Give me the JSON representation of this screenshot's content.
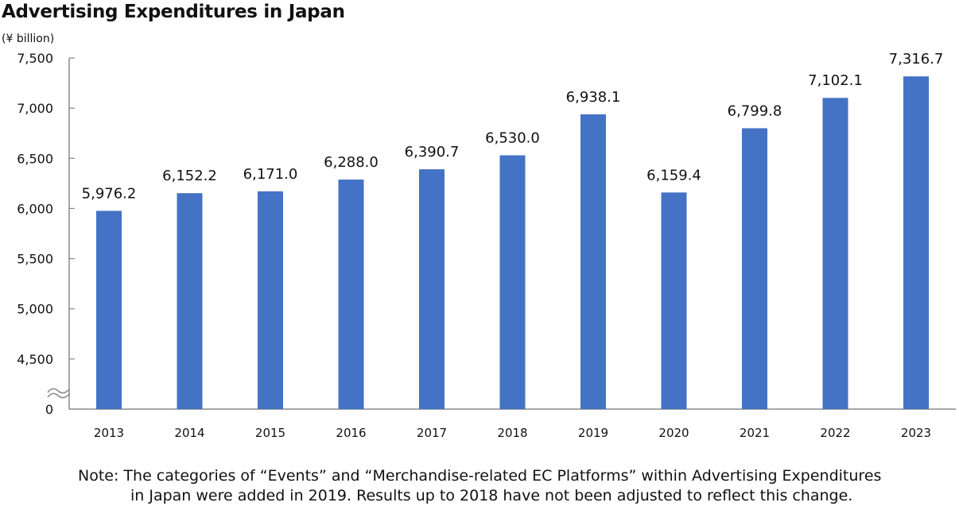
{
  "chart_data": {
    "type": "bar",
    "title": "Advertising Expenditures in Japan",
    "ylabel": "(¥ billion)",
    "xlabel": "",
    "categories": [
      "2013",
      "2014",
      "2015",
      "2016",
      "2017",
      "2018",
      "2019",
      "2020",
      "2021",
      "2022",
      "2023"
    ],
    "values": [
      5976.2,
      6152.2,
      6171.0,
      6288.0,
      6390.7,
      6530.0,
      6938.1,
      6159.4,
      6799.8,
      7102.1,
      7316.7
    ],
    "data_labels": [
      "5,976.2",
      "6,152.2",
      "6,171.0",
      "6,288.0",
      "6,390.7",
      "6,530.0",
      "6,938.1",
      "6,159.4",
      "6,799.8",
      "7,102.1",
      "7,316.7"
    ],
    "ylim": [
      4000,
      7500
    ],
    "axis_break": true,
    "yticks": [
      4500,
      5000,
      5500,
      6000,
      6500,
      7000,
      7500
    ],
    "ytick_labels": [
      "4,500",
      "5,000",
      "5,500",
      "6,000",
      "6,500",
      "7,000",
      "7,500"
    ],
    "y_origin_label": "0",
    "grid": false,
    "bar_color": "#4472C4"
  },
  "note": {
    "line1": "Note: The categories of “Events” and “Merchandise-related EC Platforms” within Advertising Expenditures",
    "line2": "in Japan were added in 2019. Results up to 2018 have not been adjusted to reflect this change."
  }
}
